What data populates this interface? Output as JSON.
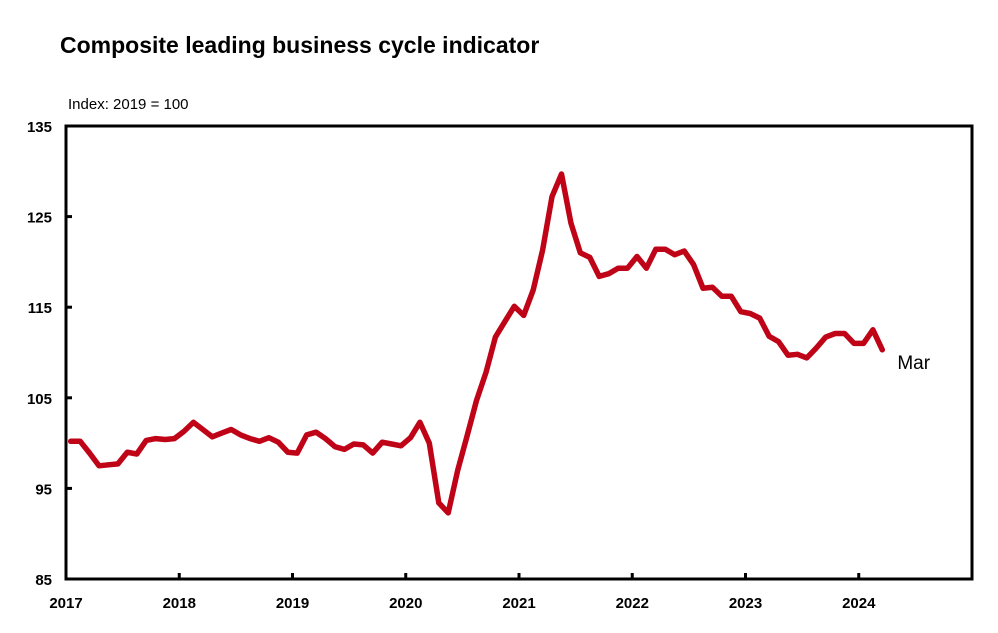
{
  "chart_data": {
    "type": "line",
    "title": "Composite leading business cycle indicator",
    "subtitle": "Index: 2019 = 100",
    "xlabel": "",
    "ylabel": "",
    "ylim": [
      85,
      135
    ],
    "yticks": [
      85,
      95,
      105,
      115,
      125,
      135
    ],
    "xlim": [
      "2017-01",
      "2025-01"
    ],
    "xticks": [
      "2017",
      "2018",
      "2019",
      "2020",
      "2021",
      "2022",
      "2023",
      "2024"
    ],
    "grid": false,
    "line_color": "#c00418",
    "start": "2017-01",
    "frequency": "monthly",
    "annotation": "Mar",
    "values": [
      100.2,
      100.2,
      98.9,
      97.5,
      97.6,
      97.7,
      99.0,
      98.8,
      100.3,
      100.5,
      100.4,
      100.5,
      101.3,
      102.3,
      101.5,
      100.7,
      101.1,
      101.5,
      100.9,
      100.5,
      100.2,
      100.6,
      100.1,
      99.0,
      98.9,
      100.9,
      101.2,
      100.5,
      99.6,
      99.3,
      99.9,
      99.8,
      98.9,
      100.1,
      99.9,
      99.7,
      100.6,
      102.3,
      100.0,
      93.4,
      92.3,
      97.0,
      100.8,
      104.7,
      107.8,
      111.7,
      113.4,
      115.1,
      114.1,
      116.9,
      121.3,
      127.2,
      129.7,
      124.3,
      121.0,
      120.5,
      118.4,
      118.7,
      119.3,
      119.3,
      120.6,
      119.3,
      121.4,
      121.4,
      120.8,
      121.2,
      119.7,
      117.1,
      117.2,
      116.2,
      116.2,
      114.5,
      114.3,
      113.8,
      111.8,
      111.2,
      109.7,
      109.8,
      109.4,
      110.5,
      111.7,
      112.1,
      112.1,
      111.0,
      111.0,
      112.5,
      110.3
    ]
  }
}
